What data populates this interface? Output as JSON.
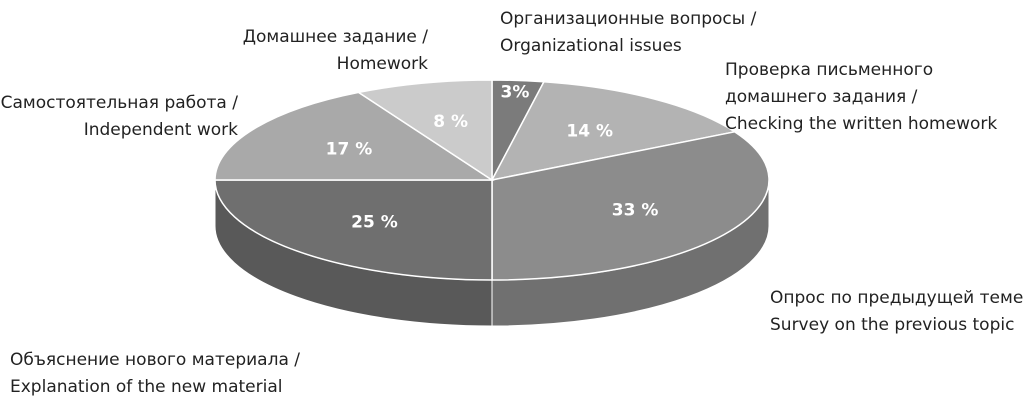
{
  "chart_data": {
    "type": "pie",
    "categories": [
      [
        "Организационные вопросы /",
        "Organizational issues"
      ],
      [
        "Проверка письменного",
        "домашнего задания /",
        "Checking the written homework"
      ],
      [
        "Опрос по предыдущей теме /",
        "Survey on the previous topic"
      ],
      [
        "Объяснение нового материала /",
        "Explanation of the new material"
      ],
      [
        "Самостоятельная работа /",
        "Independent work"
      ],
      [
        "Домашнее задание /",
        "Homework"
      ]
    ],
    "values": [
      3,
      14,
      33,
      25,
      17,
      8
    ],
    "value_labels": [
      "3%",
      "14 %",
      "33 %",
      "25 %",
      "17 %",
      "8 %"
    ],
    "colors": [
      "#7b7b7b",
      "#b3b3b3",
      "#8c8c8c",
      "#6f6f6f",
      "#a9a9a9",
      "#cbcbcb"
    ]
  }
}
